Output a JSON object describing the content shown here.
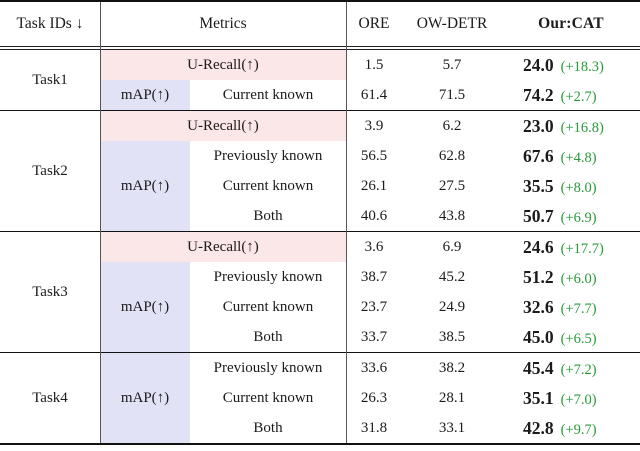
{
  "table": {
    "header": {
      "task_col": "Task IDs ↓",
      "metrics_col": "Metrics",
      "ore_col": "ORE",
      "owdetr_col": "OW-DETR",
      "ours_col": "Our:CAT"
    },
    "colors": {
      "urecall_bg": "#fbe7e7",
      "map_bg": "#e2e2f6",
      "delta_green": "#289b38"
    },
    "tasks": [
      {
        "id": "Task1",
        "urecall": {
          "label": "U-Recall(↑)",
          "ore": "1.5",
          "owdetr": "5.7",
          "ours": "24.0",
          "delta": "(+18.3)"
        },
        "map_label": "mAP(↑)",
        "map_rows": [
          {
            "label": "Current known",
            "ore": "61.4",
            "owdetr": "71.5",
            "ours": "74.2",
            "delta": "(+2.7)"
          }
        ]
      },
      {
        "id": "Task2",
        "urecall": {
          "label": "U-Recall(↑)",
          "ore": "3.9",
          "owdetr": "6.2",
          "ours": "23.0",
          "delta": "(+16.8)"
        },
        "map_label": "mAP(↑)",
        "map_rows": [
          {
            "label": "Previously known",
            "ore": "56.5",
            "owdetr": "62.8",
            "ours": "67.6",
            "delta": "(+4.8)"
          },
          {
            "label": "Current known",
            "ore": "26.1",
            "owdetr": "27.5",
            "ours": "35.5",
            "delta": "(+8.0)"
          },
          {
            "label": "Both",
            "ore": "40.6",
            "owdetr": "43.8",
            "ours": "50.7",
            "delta": "(+6.9)"
          }
        ]
      },
      {
        "id": "Task3",
        "urecall": {
          "label": "U-Recall(↑)",
          "ore": "3.6",
          "owdetr": "6.9",
          "ours": "24.6",
          "delta": "(+17.7)"
        },
        "map_label": "mAP(↑)",
        "map_rows": [
          {
            "label": "Previously known",
            "ore": "38.7",
            "owdetr": "45.2",
            "ours": "51.2",
            "delta": "(+6.0)"
          },
          {
            "label": "Current known",
            "ore": "23.7",
            "owdetr": "24.9",
            "ours": "32.6",
            "delta": "(+7.7)"
          },
          {
            "label": "Both",
            "ore": "33.7",
            "owdetr": "38.5",
            "ours": "45.0",
            "delta": "(+6.5)"
          }
        ]
      },
      {
        "id": "Task4",
        "map_label": "mAP(↑)",
        "map_rows": [
          {
            "label": "Previously known",
            "ore": "33.6",
            "owdetr": "38.2",
            "ours": "45.4",
            "delta": "(+7.2)"
          },
          {
            "label": "Current known",
            "ore": "26.3",
            "owdetr": "28.1",
            "ours": "35.1",
            "delta": "(+7.0)"
          },
          {
            "label": "Both",
            "ore": "31.8",
            "owdetr": "33.1",
            "ours": "42.8",
            "delta": "(+9.7)"
          }
        ]
      }
    ]
  }
}
